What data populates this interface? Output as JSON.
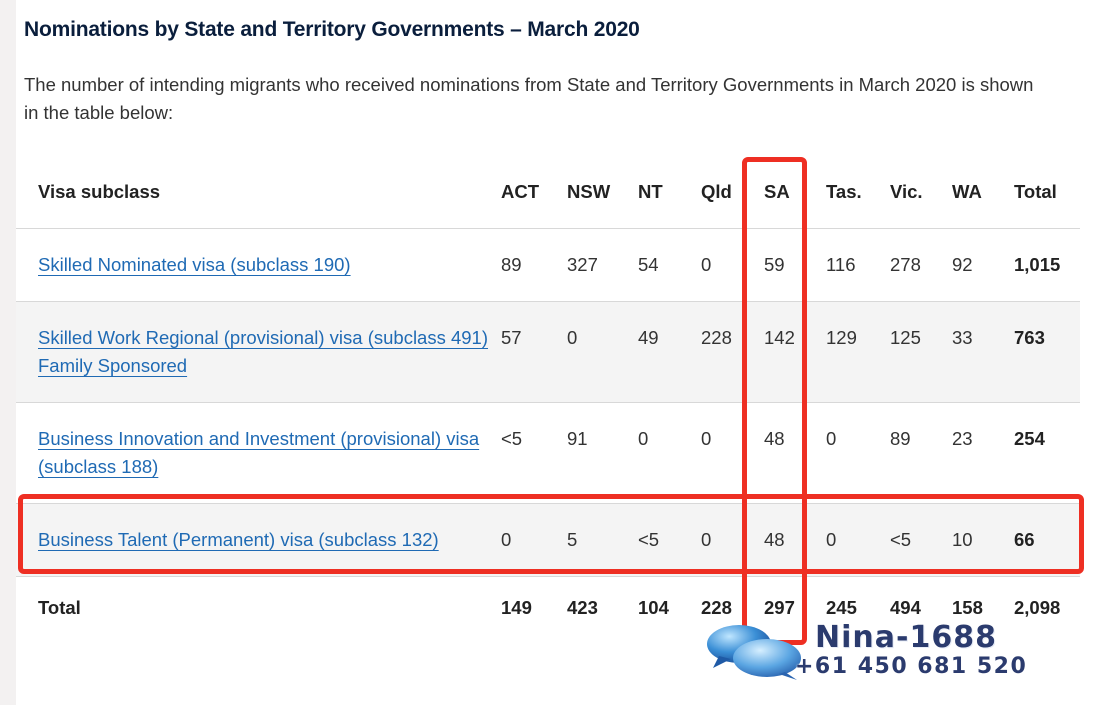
{
  "heading": "Nominations by State and Territory Governments – March 2020",
  "intro": "The number of intending migrants who received nominations from State and Territory Governments in March 2020 is shown in the table below:",
  "table": {
    "headers": [
      "Visa subclass",
      "ACT",
      "NSW",
      "NT",
      "Qld",
      "SA",
      "Tas.",
      "Vic.",
      "WA",
      "Total"
    ],
    "rows": [
      {
        "visa": "Skilled Nominated visa (subclass 190)",
        "values": [
          "89",
          "327",
          "54",
          "0",
          "59",
          "116",
          "278",
          "92"
        ],
        "total": "1,015"
      },
      {
        "visa": "Skilled Work Regional (provisional) visa (subclass 491) Family Sponsored",
        "values": [
          "57",
          "0",
          "49",
          "228",
          "142",
          "129",
          "125",
          "33"
        ],
        "total": "763"
      },
      {
        "visa": "Business Innovation and Investment (provisional) visa (subclass 188)",
        "values": [
          "<5",
          "91",
          "0",
          "0",
          "48",
          "0",
          "89",
          "23"
        ],
        "total": "254"
      },
      {
        "visa": "Business Talent (Permanent) visa (subclass 132)",
        "values": [
          "0",
          "5",
          "<5",
          "0",
          "48",
          "0",
          "<5",
          "10"
        ],
        "total": "66"
      }
    ],
    "footer": {
      "label": "Total",
      "values": [
        "149",
        "423",
        "104",
        "228",
        "297",
        "245",
        "494",
        "158"
      ],
      "total": "2,098"
    }
  },
  "highlights": {
    "color": "#ee2f23",
    "column": "SA",
    "row": "Business Talent (Permanent) visa (subclass 132)"
  },
  "watermark": {
    "name": "Nina-1688",
    "phone": "+61 450 681 520",
    "icon": "speech-bubbles-icon"
  },
  "colors": {
    "heading": "#0a1e3c",
    "link": "#1f6ab4",
    "row_shade": "#f4f4f4"
  }
}
